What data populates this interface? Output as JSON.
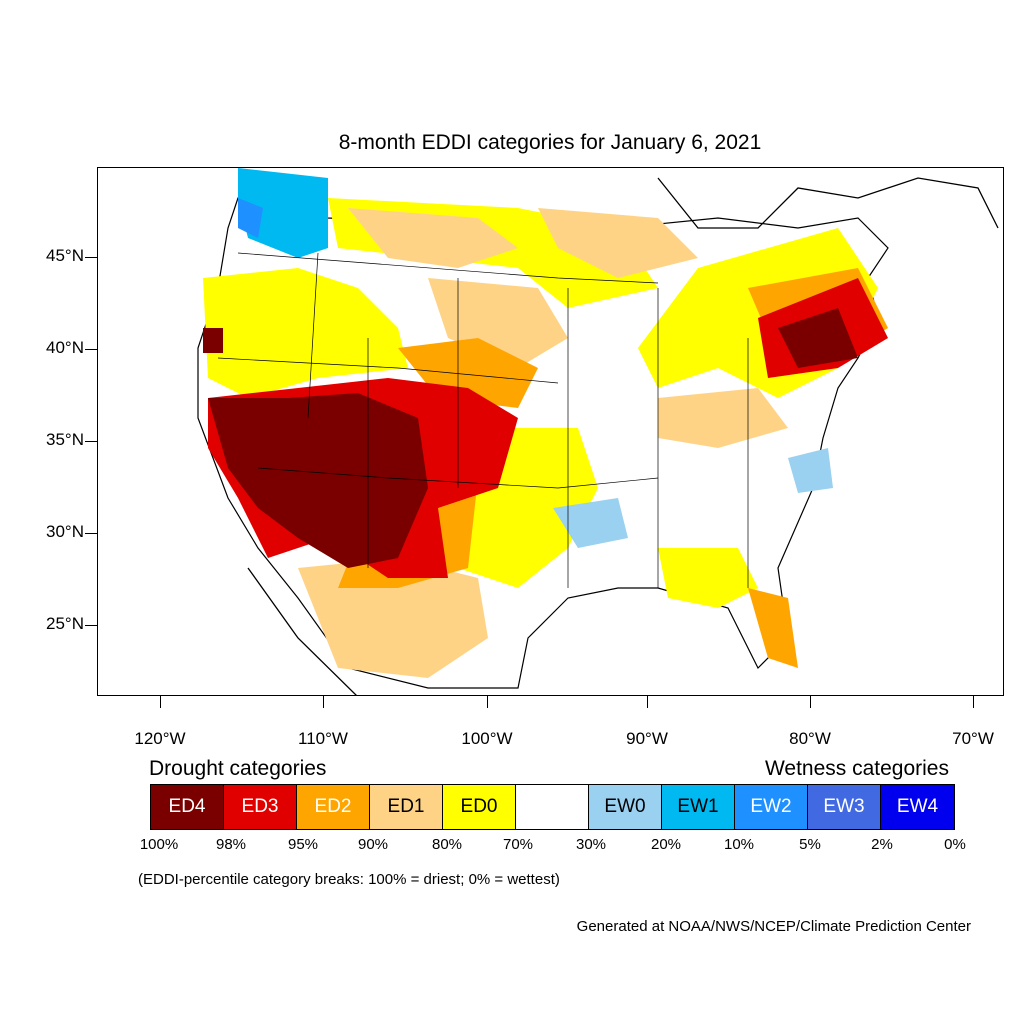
{
  "title": "8-month EDDI categories for January 6, 2021",
  "lat_labels": [
    "45°N",
    "40°N",
    "35°N",
    "30°N",
    "25°N"
  ],
  "lon_labels": [
    "120°W",
    "110°W",
    "100°W",
    "90°W",
    "80°W",
    "70°W"
  ],
  "legend": {
    "drought_title": "Drought categories",
    "wetness_title": "Wetness categories",
    "categories": [
      {
        "label": "ED4",
        "color": "#7a0000",
        "text_color": "#ffffff"
      },
      {
        "label": "ED3",
        "color": "#e00000",
        "text_color": "#ffffff"
      },
      {
        "label": "ED2",
        "color": "#ffa500",
        "text_color": "#ffffff"
      },
      {
        "label": "ED1",
        "color": "#ffd386",
        "text_color": "#000000"
      },
      {
        "label": "ED0",
        "color": "#ffff00",
        "text_color": "#000000"
      },
      {
        "label": "",
        "color": "#ffffff",
        "text_color": "#000000"
      },
      {
        "label": "EW0",
        "color": "#9ad0f0",
        "text_color": "#000000"
      },
      {
        "label": "EW1",
        "color": "#00b9f0",
        "text_color": "#000000"
      },
      {
        "label": "EW2",
        "color": "#1e90ff",
        "text_color": "#ffffff"
      },
      {
        "label": "EW3",
        "color": "#4169e1",
        "text_color": "#ffffff"
      },
      {
        "label": "EW4",
        "color": "#0000ee",
        "text_color": "#ffffff"
      }
    ],
    "breaks": [
      "100%",
      "98%",
      "95%",
      "90%",
      "80%",
      "70%",
      "30%",
      "20%",
      "10%",
      "5%",
      "2%",
      "0%"
    ]
  },
  "note": "(EDDI-percentile category breaks: 100% = driest; 0% = wettest)",
  "credit": "Generated at NOAA/NWS/NCEP/Climate Prediction Center"
}
